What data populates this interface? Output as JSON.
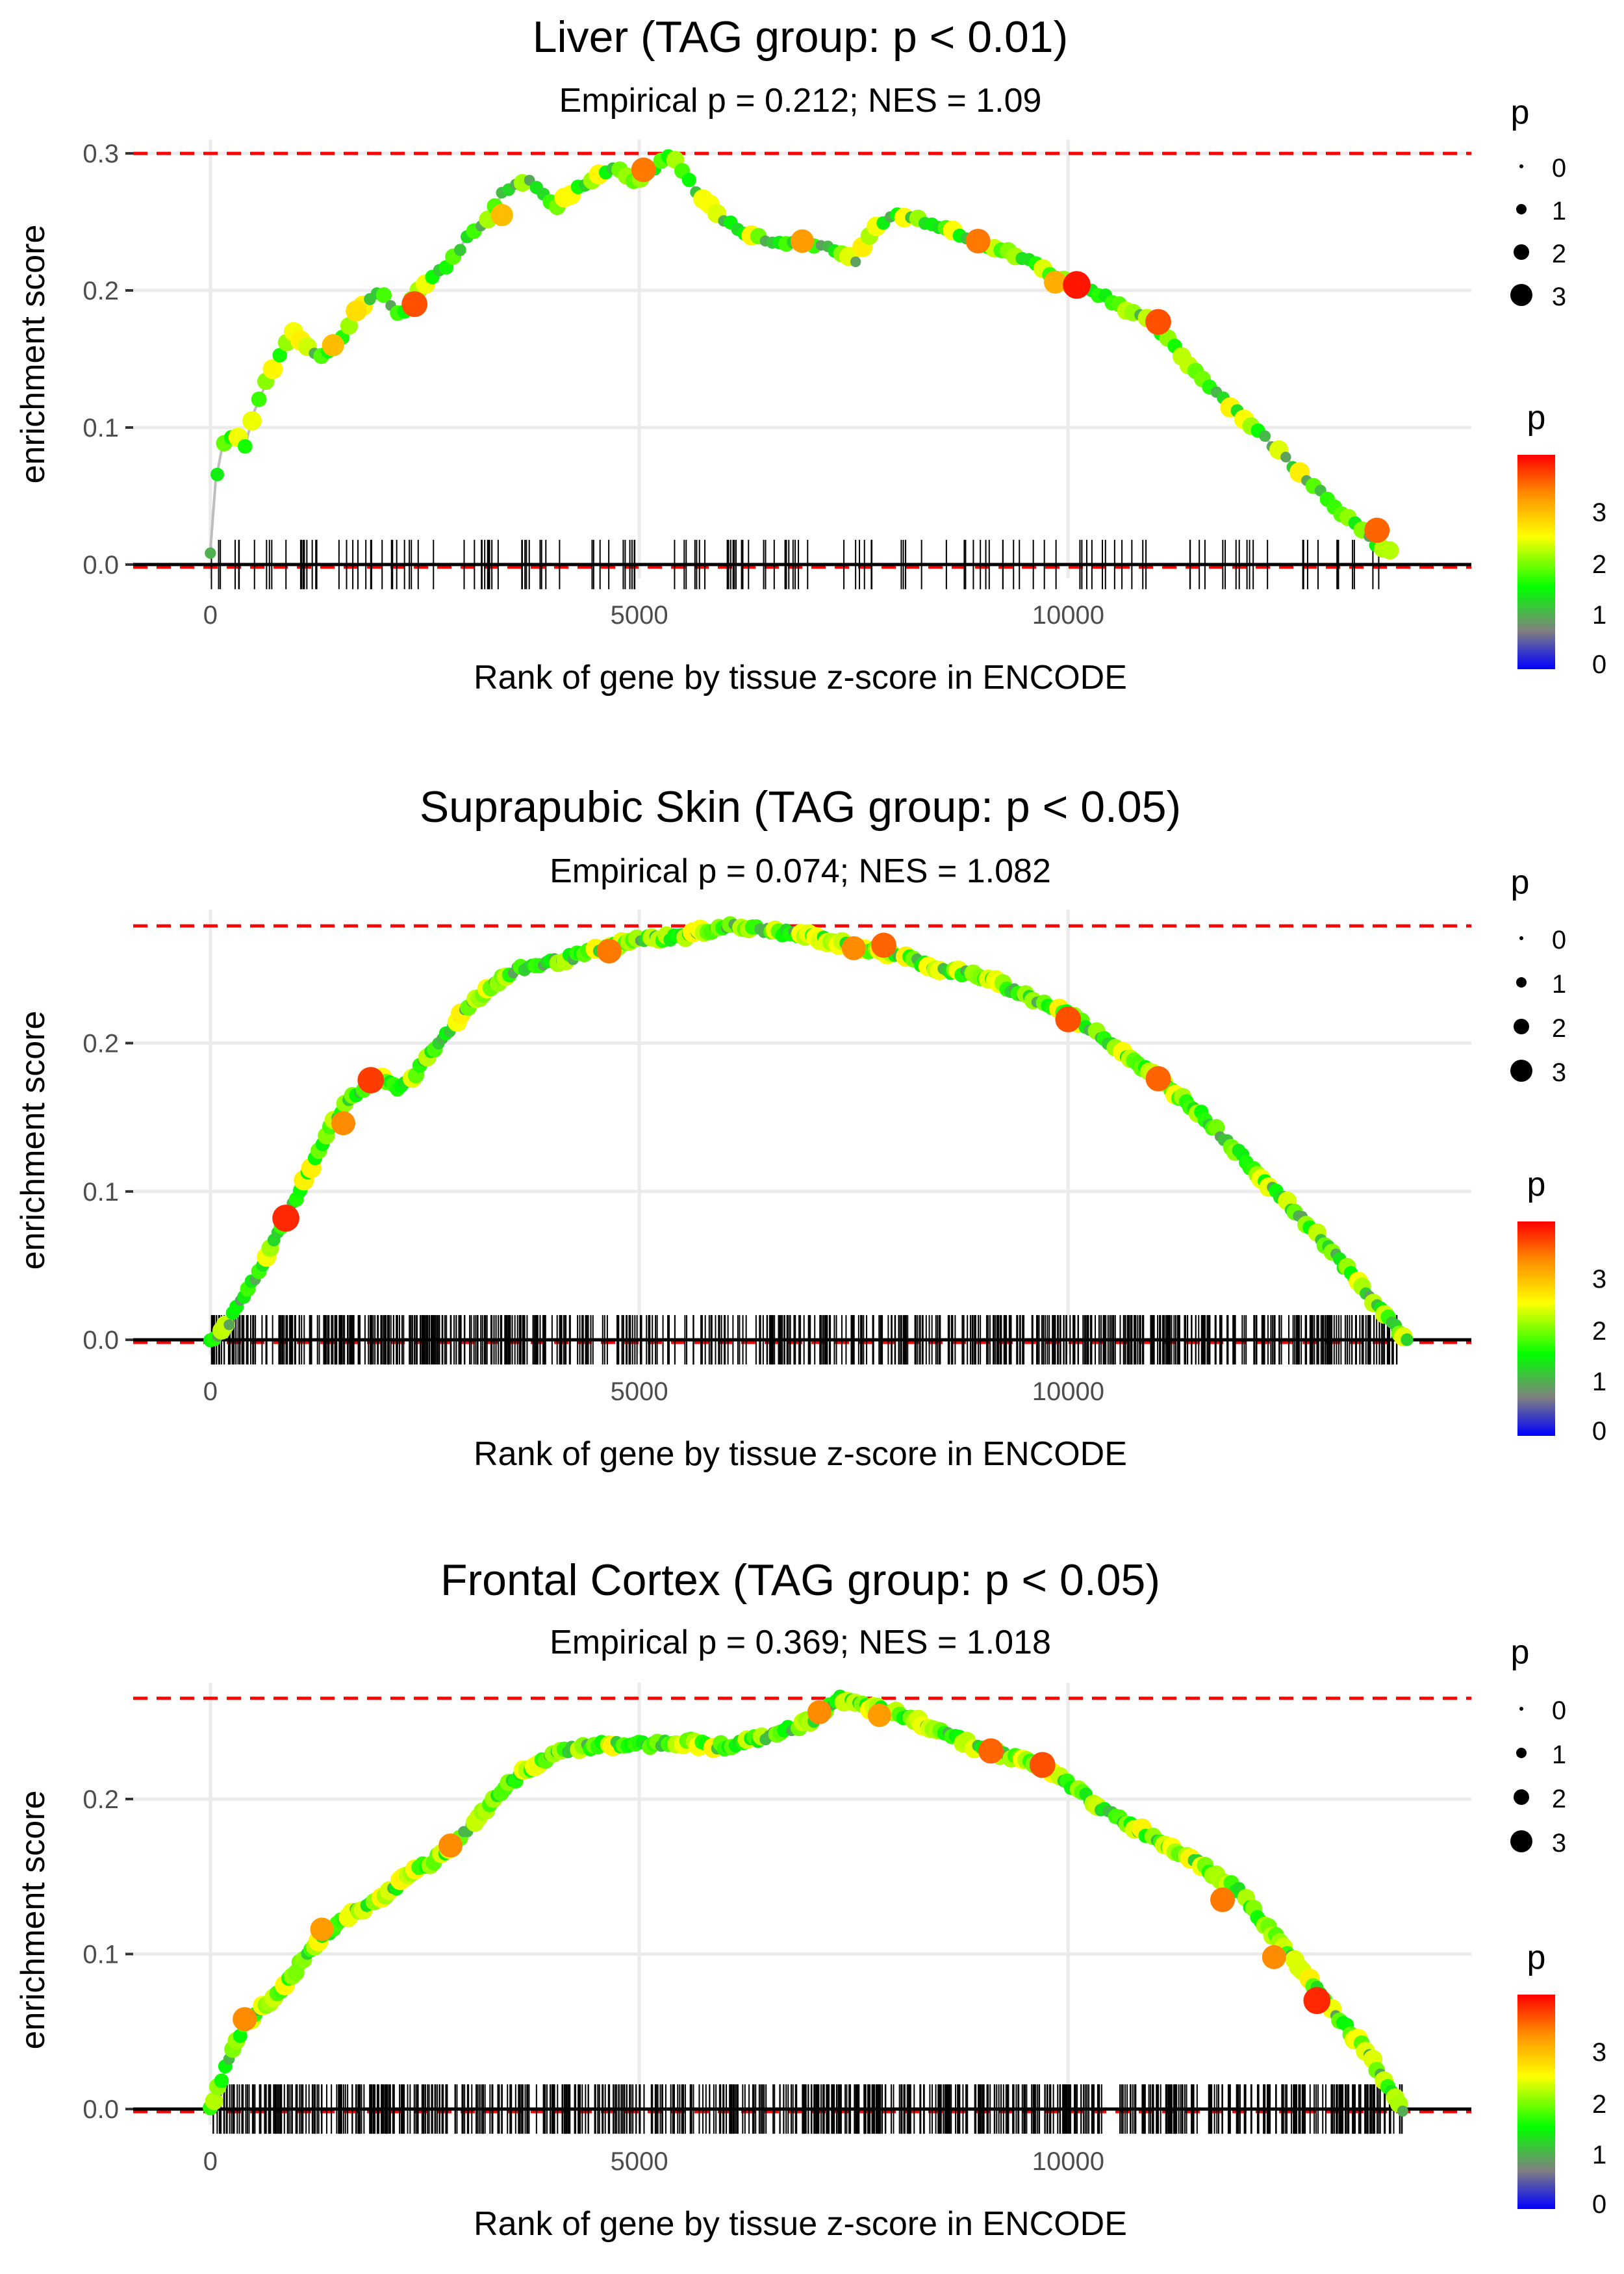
{
  "chart_data": [
    {
      "type": "line",
      "title": "Liver (TAG group: p < 0.01)",
      "subtitle": "Empirical p = 0.212; NES = 1.09",
      "xlabel": "Rank of gene by tissue z-score in ENCODE",
      "ylabel": "enrichment score",
      "xlim": [
        -900,
        14700
      ],
      "ylim": [
        -0.01,
        0.31
      ],
      "xticks": [
        0,
        5000,
        10000
      ],
      "xtick_labels": [
        "0",
        "5000",
        "10000"
      ],
      "yticks": [
        0.0,
        0.1,
        0.2,
        0.3
      ],
      "ytick_labels": [
        "0.0",
        "0.1",
        "0.2",
        "0.3"
      ],
      "max_es": 0.3,
      "min_es": 0.0,
      "x_max": 13750,
      "tick_count": 150,
      "dense_points": false,
      "es_curve": {
        "x": [
          0,
          60,
          150,
          300,
          400,
          500,
          600,
          700,
          800,
          950,
          1100,
          1300,
          1450,
          1600,
          1700,
          1800,
          2000,
          2200,
          2400,
          2600,
          2800,
          3000,
          3200,
          3400,
          3600,
          3700,
          3900,
          4000,
          4200,
          4400,
          4700,
          4900,
          5100,
          5350,
          5700,
          6000,
          6500,
          7000,
          7300,
          7500,
          7800,
          8000,
          8400,
          8800,
          9200,
          9600,
          10000,
          10300,
          10600,
          11000,
          11500,
          12000,
          12500,
          13000,
          13400,
          13700
        ],
        "y": [
          0.01,
          0.06,
          0.09,
          0.095,
          0.085,
          0.11,
          0.125,
          0.14,
          0.15,
          0.17,
          0.16,
          0.15,
          0.16,
          0.17,
          0.185,
          0.19,
          0.2,
          0.18,
          0.2,
          0.21,
          0.22,
          0.24,
          0.25,
          0.27,
          0.28,
          0.28,
          0.27,
          0.26,
          0.27,
          0.28,
          0.29,
          0.28,
          0.285,
          0.3,
          0.27,
          0.25,
          0.235,
          0.235,
          0.23,
          0.22,
          0.25,
          0.255,
          0.25,
          0.24,
          0.23,
          0.22,
          0.205,
          0.2,
          0.19,
          0.175,
          0.14,
          0.11,
          0.08,
          0.05,
          0.025,
          0.01
        ]
      },
      "highlight_points": [
        {
          "x": 1430,
          "y": 0.16,
          "p": 3.0
        },
        {
          "x": 1700,
          "y": 0.185,
          "p": 2.8
        },
        {
          "x": 2380,
          "y": 0.19,
          "p": 3.6
        },
        {
          "x": 3400,
          "y": 0.255,
          "p": 3.0
        },
        {
          "x": 5050,
          "y": 0.288,
          "p": 3.4
        },
        {
          "x": 6900,
          "y": 0.236,
          "p": 3.2
        },
        {
          "x": 8950,
          "y": 0.236,
          "p": 3.4
        },
        {
          "x": 9850,
          "y": 0.206,
          "p": 3.1
        },
        {
          "x": 10100,
          "y": 0.204,
          "p": 3.9
        },
        {
          "x": 11050,
          "y": 0.177,
          "p": 3.6
        },
        {
          "x": 13600,
          "y": 0.025,
          "p": 3.5
        }
      ]
    },
    {
      "type": "line",
      "title": "Suprapubic Skin (TAG group: p < 0.05)",
      "subtitle": "Empirical p = 0.074; NES = 1.082",
      "xlabel": "Rank of gene by tissue z-score in ENCODE",
      "ylabel": "enrichment score",
      "xlim": [
        -900,
        14700
      ],
      "ylim": [
        -0.01,
        0.29
      ],
      "xticks": [
        0,
        5000,
        10000
      ],
      "xtick_labels": [
        "0",
        "5000",
        "10000"
      ],
      "yticks": [
        0.0,
        0.1,
        0.2
      ],
      "ytick_labels": [
        "0.0",
        "0.1",
        "0.2"
      ],
      "max_es": 0.279,
      "min_es": 0.0,
      "x_max": 13950,
      "tick_count": 700,
      "dense_points": true,
      "es_curve": {
        "x": [
          0,
          200,
          400,
          600,
          800,
          1000,
          1200,
          1400,
          1600,
          1800,
          2000,
          2200,
          2400,
          2600,
          2800,
          3000,
          3300,
          3600,
          4000,
          4500,
          5000,
          5500,
          6000,
          6500,
          7000,
          7500,
          8000,
          8500,
          9000,
          9500,
          10000,
          10500,
          11000,
          11500,
          12000,
          12500,
          13000,
          13500,
          13800,
          13950
        ],
        "y": [
          0.0,
          0.01,
          0.03,
          0.05,
          0.075,
          0.095,
          0.12,
          0.145,
          0.16,
          0.17,
          0.175,
          0.17,
          0.18,
          0.195,
          0.21,
          0.225,
          0.24,
          0.25,
          0.255,
          0.262,
          0.27,
          0.272,
          0.279,
          0.276,
          0.272,
          0.265,
          0.26,
          0.25,
          0.245,
          0.232,
          0.22,
          0.2,
          0.178,
          0.155,
          0.125,
          0.095,
          0.065,
          0.03,
          0.01,
          0.0
        ]
      },
      "highlight_points": [
        {
          "x": 880,
          "y": 0.082,
          "p": 3.8
        },
        {
          "x": 1550,
          "y": 0.146,
          "p": 3.3
        },
        {
          "x": 1870,
          "y": 0.175,
          "p": 3.7
        },
        {
          "x": 4650,
          "y": 0.262,
          "p": 3.4
        },
        {
          "x": 7500,
          "y": 0.264,
          "p": 3.3
        },
        {
          "x": 7850,
          "y": 0.266,
          "p": 3.5
        },
        {
          "x": 10000,
          "y": 0.216,
          "p": 3.6
        },
        {
          "x": 11050,
          "y": 0.176,
          "p": 3.5
        }
      ]
    },
    {
      "type": "line",
      "title": "Frontal Cortex (TAG group: p < 0.05)",
      "subtitle": "Empirical p = 0.369; NES = 1.018",
      "xlabel": "Rank of gene by tissue z-score in ENCODE",
      "ylabel": "enrichment score",
      "xlim": [
        -900,
        14700
      ],
      "ylim": [
        -0.01,
        0.275
      ],
      "xticks": [
        0,
        5000,
        10000
      ],
      "xtick_labels": [
        "0",
        "5000",
        "10000"
      ],
      "yticks": [
        0.0,
        0.1,
        0.2
      ],
      "ytick_labels": [
        "0.0",
        "0.1",
        "0.2"
      ],
      "max_es": 0.265,
      "min_es": 0.0,
      "x_max": 13900,
      "tick_count": 700,
      "dense_points": true,
      "es_curve": {
        "x": [
          0,
          200,
          400,
          600,
          800,
          1000,
          1200,
          1400,
          1600,
          1800,
          2000,
          2200,
          2400,
          2600,
          2800,
          3000,
          3300,
          3600,
          4000,
          4500,
          5000,
          5500,
          6000,
          6500,
          7000,
          7300,
          7600,
          8000,
          8500,
          9000,
          9500,
          10000,
          10500,
          11000,
          11500,
          12000,
          12500,
          13000,
          13500,
          13900
        ],
        "y": [
          0.0,
          0.03,
          0.055,
          0.065,
          0.075,
          0.09,
          0.105,
          0.115,
          0.125,
          0.13,
          0.135,
          0.145,
          0.155,
          0.16,
          0.17,
          0.18,
          0.2,
          0.215,
          0.23,
          0.235,
          0.235,
          0.237,
          0.234,
          0.24,
          0.25,
          0.265,
          0.26,
          0.255,
          0.245,
          0.232,
          0.225,
          0.21,
          0.19,
          0.175,
          0.16,
          0.14,
          0.105,
          0.07,
          0.035,
          0.0
        ]
      },
      "highlight_points": [
        {
          "x": 400,
          "y": 0.058,
          "p": 3.3
        },
        {
          "x": 1300,
          "y": 0.116,
          "p": 3.2
        },
        {
          "x": 2800,
          "y": 0.17,
          "p": 3.3
        },
        {
          "x": 7100,
          "y": 0.256,
          "p": 3.3
        },
        {
          "x": 7800,
          "y": 0.254,
          "p": 3.2
        },
        {
          "x": 9100,
          "y": 0.231,
          "p": 3.5
        },
        {
          "x": 9700,
          "y": 0.222,
          "p": 3.6
        },
        {
          "x": 11800,
          "y": 0.135,
          "p": 3.4
        },
        {
          "x": 12400,
          "y": 0.098,
          "p": 3.3
        },
        {
          "x": 12900,
          "y": 0.07,
          "p": 3.8
        }
      ]
    }
  ],
  "legend": {
    "size_title": "p",
    "size_labels": [
      "0",
      "1",
      "2",
      "3"
    ],
    "color_title": "p",
    "color_labels": [
      "3",
      "2",
      "1",
      "0"
    ],
    "colors": [
      "#ff0000",
      "#ff8c00",
      "#ffff00",
      "#00ff00",
      "#808080",
      "#0000ff"
    ]
  },
  "colors": {
    "max_line": "#ff0000",
    "curve": "#bdbdbd",
    "grid": "#ebebeb",
    "tick": "#000000"
  }
}
